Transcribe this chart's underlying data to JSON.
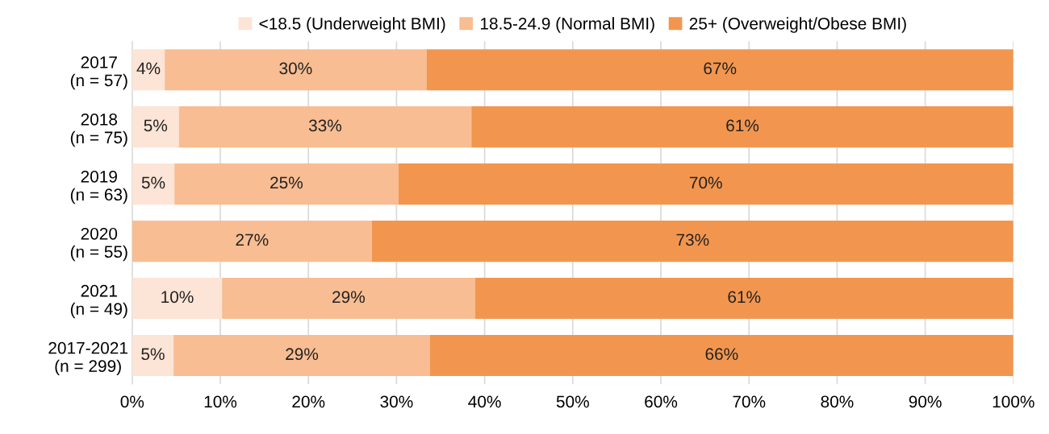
{
  "chart_data": {
    "type": "bar",
    "orientation": "horizontal",
    "stacked": true,
    "categories": [
      "2017\n(n = 57)",
      "2018\n(n = 75)",
      "2019\n(n = 63)",
      "2020\n(n = 55)",
      "2021\n(n = 49)",
      "2017-2021\n(n = 299)"
    ],
    "series": [
      {
        "name": "<18.5 (Underweight BMI)",
        "color": "#fce4d6",
        "values": [
          3.7,
          5.3,
          4.8,
          0,
          10.2,
          4.7
        ],
        "value_labels": [
          "4%",
          "5%",
          "5%",
          null,
          "10%",
          "5%"
        ]
      },
      {
        "name": "18.5-24.9 (Normal BMI)",
        "color": "#f8bd92",
        "values": [
          29.7,
          33.2,
          25.4,
          27.2,
          28.7,
          29.1
        ],
        "value_labels": [
          "30%",
          "33%",
          "25%",
          "27%",
          "29%",
          "29%"
        ]
      },
      {
        "name": "25+ (Overweight/Obese BMI)",
        "color": "#f2964f",
        "values": [
          66.6,
          61.5,
          69.8,
          72.8,
          61.1,
          66.2
        ],
        "value_labels": [
          "67%",
          "61%",
          "70%",
          "73%",
          "61%",
          "66%"
        ]
      }
    ],
    "xlim": [
      0,
      100
    ],
    "xticks": [
      {
        "value": 0,
        "label": "0%"
      },
      {
        "value": 10,
        "label": "10%"
      },
      {
        "value": 20,
        "label": "20%"
      },
      {
        "value": 30,
        "label": "30%"
      },
      {
        "value": 40,
        "label": "40%"
      },
      {
        "value": 50,
        "label": "50%"
      },
      {
        "value": 60,
        "label": "60%"
      },
      {
        "value": 70,
        "label": "70%"
      },
      {
        "value": 80,
        "label": "80%"
      },
      {
        "value": 90,
        "label": "90%"
      },
      {
        "value": 100,
        "label": "100%"
      }
    ],
    "grid": "x",
    "legend": "top"
  }
}
